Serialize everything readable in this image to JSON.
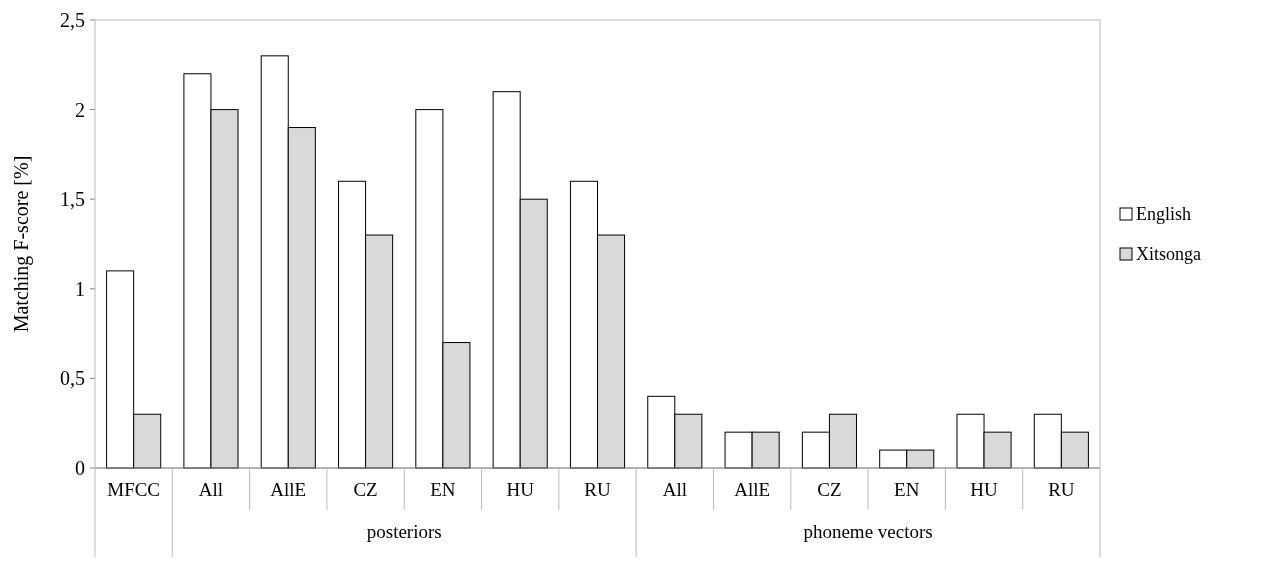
{
  "chart_data": {
    "type": "bar",
    "ylabel": "Matching F-score [%]",
    "categories": [
      "MFCC",
      "All",
      "AllE",
      "CZ",
      "EN",
      "HU",
      "RU",
      "All",
      "AllE",
      "CZ",
      "EN",
      "HU",
      "RU"
    ],
    "series": [
      {
        "name": "English",
        "color": "#ffffff",
        "values": [
          1.1,
          2.2,
          2.3,
          1.6,
          2.0,
          2.1,
          1.6,
          0.4,
          0.2,
          0.2,
          0.1,
          0.3,
          0.3
        ]
      },
      {
        "name": "Xitsonga",
        "color": "#d9d9d9",
        "values": [
          0.3,
          2.0,
          1.9,
          1.3,
          0.7,
          1.5,
          1.3,
          0.3,
          0.2,
          0.3,
          0.1,
          0.2,
          0.2
        ]
      }
    ],
    "ylim": [
      0,
      2.5
    ],
    "yticks": [
      0,
      {
        "value": 0.5,
        "label": "0,5"
      },
      1,
      {
        "value": 1.5,
        "label": "1,5"
      },
      2,
      {
        "value": 2.5,
        "label": "2,5"
      }
    ],
    "annotations": [
      "posteriors",
      "phoneme vectors"
    ],
    "legend": "right",
    "grid": false
  }
}
